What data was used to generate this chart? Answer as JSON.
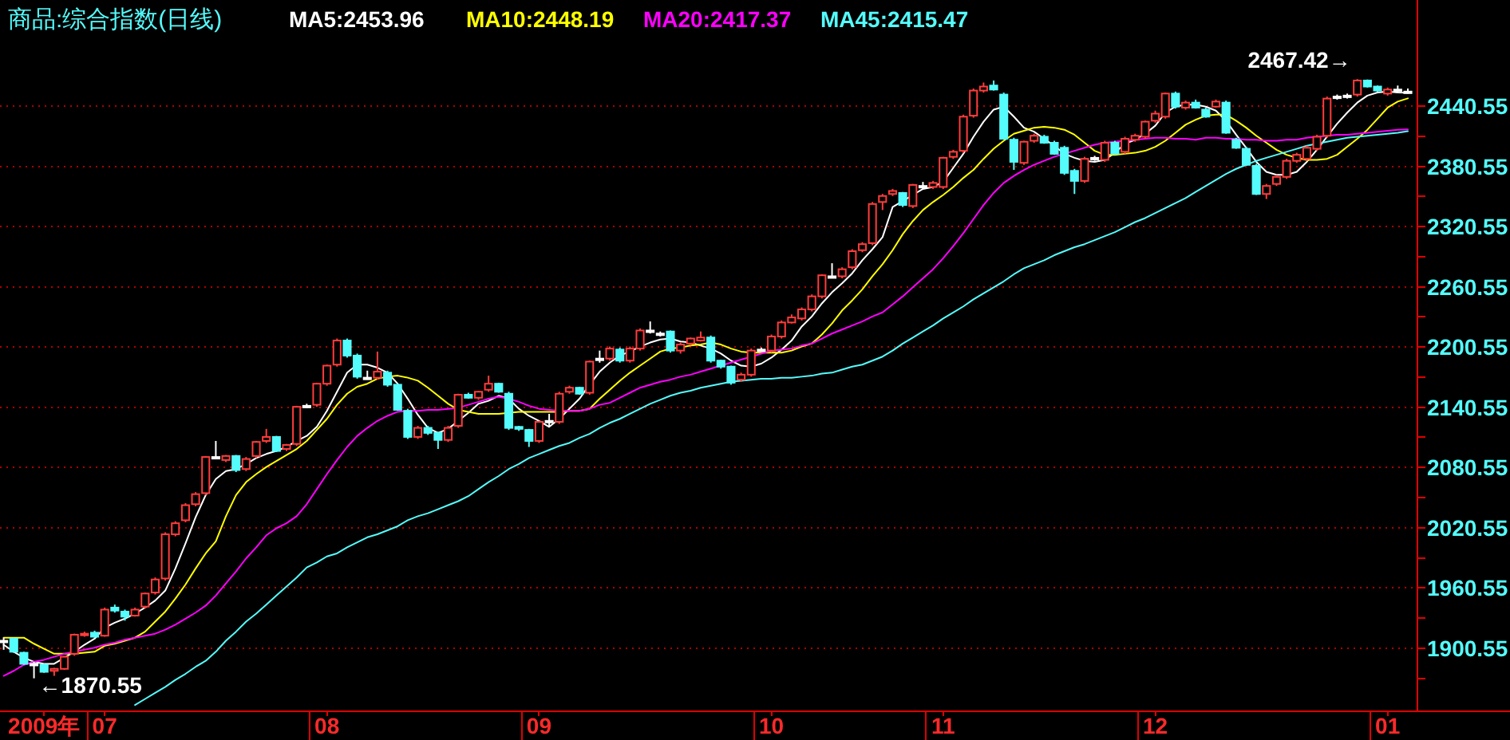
{
  "chart_data": {
    "type": "candlestick",
    "title": "商品:综合指数(日线)",
    "categories": [
      null,
      null,
      null,
      null,
      "2009年",
      null,
      null,
      null,
      null,
      null,
      "07",
      null,
      null,
      null,
      null,
      null,
      null,
      null,
      null,
      null,
      null,
      null,
      null,
      null,
      null,
      null,
      null,
      null,
      null,
      null,
      null,
      null,
      "08",
      null,
      null,
      null,
      null,
      null,
      null,
      null,
      null,
      null,
      null,
      null,
      null,
      null,
      null,
      null,
      null,
      null,
      null,
      null,
      null,
      "09",
      null,
      null,
      null,
      null,
      null,
      null,
      null,
      null,
      null,
      null,
      null,
      null,
      null,
      null,
      null,
      null,
      null,
      null,
      null,
      null,
      null,
      null,
      "10",
      null,
      null,
      null,
      null,
      null,
      null,
      null,
      null,
      null,
      null,
      null,
      null,
      null,
      null,
      null,
      null,
      "11",
      null,
      null,
      null,
      null,
      null,
      null,
      null,
      null,
      null,
      null,
      null,
      null,
      null,
      null,
      null,
      null,
      null,
      null,
      null,
      null,
      "12",
      null,
      null,
      null,
      null,
      null,
      null,
      null,
      null,
      null,
      null,
      null,
      null,
      null,
      null,
      null,
      null,
      null,
      null,
      null,
      null,
      null,
      null,
      "01",
      null,
      null
    ],
    "ohlc": [
      [
        1908,
        1911,
        1899,
        1908
      ],
      [
        1910,
        1911,
        1896,
        1897
      ],
      [
        1896,
        1897,
        1884,
        1885
      ],
      [
        1885,
        1887,
        1870.55,
        1885
      ],
      [
        1884,
        1885,
        1876,
        1877
      ],
      [
        1878,
        1881,
        1873,
        1880
      ],
      [
        1880,
        1893,
        1879,
        1892
      ],
      [
        1895,
        1915,
        1893,
        1914
      ],
      [
        1914,
        1917,
        1912,
        1915
      ],
      [
        1916,
        1918,
        1911,
        1912
      ],
      [
        1913,
        1941,
        1912,
        1939
      ],
      [
        1941,
        1944,
        1936,
        1938
      ],
      [
        1937,
        1939,
        1928,
        1932
      ],
      [
        1933,
        1941,
        1932,
        1939
      ],
      [
        1942,
        1956,
        1940,
        1955
      ],
      [
        1956,
        1971,
        1954,
        1969
      ],
      [
        1970,
        2016,
        1968,
        2014
      ],
      [
        2014,
        2027,
        2012,
        2025
      ],
      [
        2028,
        2045,
        2026,
        2043
      ],
      [
        2044,
        2056,
        2042,
        2054
      ],
      [
        2055,
        2092,
        2053,
        2091
      ],
      [
        2091,
        2107,
        2089,
        2091
      ],
      [
        2088,
        2093,
        2086,
        2092
      ],
      [
        2092,
        2093,
        2076,
        2078
      ],
      [
        2079,
        2091,
        2077,
        2089
      ],
      [
        2092,
        2107,
        2090,
        2106
      ],
      [
        2107,
        2119,
        2105,
        2111
      ],
      [
        2111,
        2112,
        2096,
        2097
      ],
      [
        2099,
        2104,
        2097,
        2103
      ],
      [
        2104,
        2142,
        2102,
        2141
      ],
      [
        2142,
        2144,
        2140,
        2142
      ],
      [
        2143,
        2165,
        2141,
        2164
      ],
      [
        2164,
        2183,
        2162,
        2182
      ],
      [
        2183,
        2209,
        2181,
        2207
      ],
      [
        2207,
        2209,
        2190,
        2192
      ],
      [
        2192,
        2194,
        2169,
        2171
      ],
      [
        2170,
        2177,
        2168,
        2170
      ],
      [
        2170,
        2196,
        2168,
        2176
      ],
      [
        2175,
        2177,
        2161,
        2163
      ],
      [
        2163,
        2164,
        2137,
        2138
      ],
      [
        2137,
        2139,
        2109,
        2111
      ],
      [
        2111,
        2122,
        2109,
        2120
      ],
      [
        2120,
        2122,
        2113,
        2115
      ],
      [
        2115,
        2116,
        2099,
        2108
      ],
      [
        2108,
        2122,
        2106,
        2120
      ],
      [
        2122,
        2154,
        2120,
        2153
      ],
      [
        2153,
        2155,
        2149,
        2150
      ],
      [
        2150,
        2157,
        2148,
        2156
      ],
      [
        2158,
        2172,
        2156,
        2164
      ],
      [
        2164,
        2165,
        2155,
        2156
      ],
      [
        2154,
        2156,
        2118,
        2120
      ],
      [
        2121,
        2122,
        2117,
        2119
      ],
      [
        2118,
        2119,
        2101,
        2107
      ],
      [
        2107,
        2127,
        2105,
        2126
      ],
      [
        2127,
        2134,
        2122,
        2127
      ],
      [
        2126,
        2156,
        2124,
        2154
      ],
      [
        2156,
        2162,
        2154,
        2160
      ],
      [
        2160,
        2161,
        2153,
        2154
      ],
      [
        2155,
        2187,
        2153,
        2186
      ],
      [
        2189,
        2197,
        2185,
        2189
      ],
      [
        2189,
        2201,
        2187,
        2199
      ],
      [
        2198,
        2200,
        2185,
        2187
      ],
      [
        2187,
        2201,
        2185,
        2199
      ],
      [
        2199,
        2219,
        2197,
        2217
      ],
      [
        2217,
        2226,
        2214,
        2217
      ],
      [
        2214,
        2216,
        2211,
        2214
      ],
      [
        2216,
        2217,
        2195,
        2197
      ],
      [
        2197,
        2205,
        2194,
        2203
      ],
      [
        2204,
        2210,
        2202,
        2209
      ],
      [
        2207,
        2216,
        2206,
        2210
      ],
      [
        2210,
        2212,
        2185,
        2187
      ],
      [
        2187,
        2188,
        2179,
        2181
      ],
      [
        2181,
        2182,
        2163,
        2165
      ],
      [
        2168,
        2175,
        2166,
        2173
      ],
      [
        2173,
        2199,
        2171,
        2197
      ],
      [
        2198,
        2200,
        2196,
        2198
      ],
      [
        2197,
        2213,
        2195,
        2211
      ],
      [
        2211,
        2227,
        2209,
        2225
      ],
      [
        2225,
        2233,
        2224,
        2230
      ],
      [
        2229,
        2240,
        2227,
        2238
      ],
      [
        2238,
        2253,
        2236,
        2251
      ],
      [
        2251,
        2273,
        2249,
        2272
      ],
      [
        2271,
        2284,
        2269,
        2271
      ],
      [
        2271,
        2280,
        2269,
        2278
      ],
      [
        2280,
        2298,
        2278,
        2296
      ],
      [
        2297,
        2305,
        2295,
        2303
      ],
      [
        2304,
        2345,
        2302,
        2343
      ],
      [
        2345,
        2353,
        2337,
        2351
      ],
      [
        2353,
        2358,
        2351,
        2356
      ],
      [
        2354,
        2355,
        2340,
        2342
      ],
      [
        2341,
        2363,
        2339,
        2362
      ],
      [
        2361,
        2365,
        2358,
        2361
      ],
      [
        2360,
        2366,
        2358,
        2364
      ],
      [
        2360,
        2390,
        2358,
        2389
      ],
      [
        2390,
        2397,
        2388,
        2395
      ],
      [
        2396,
        2432,
        2394,
        2430
      ],
      [
        2431,
        2458,
        2429,
        2456
      ],
      [
        2456,
        2464,
        2454,
        2460
      ],
      [
        2461,
        2466,
        2456,
        2457
      ],
      [
        2452,
        2454,
        2407,
        2408
      ],
      [
        2407,
        2409,
        2377,
        2385
      ],
      [
        2384,
        2406,
        2382,
        2405
      ],
      [
        2406,
        2413,
        2404,
        2411
      ],
      [
        2410,
        2412,
        2403,
        2404
      ],
      [
        2404,
        2406,
        2392,
        2393
      ],
      [
        2399,
        2401,
        2372,
        2374
      ],
      [
        2376,
        2378,
        2353,
        2366
      ],
      [
        2366,
        2390,
        2364,
        2388
      ],
      [
        2389,
        2391,
        2386,
        2389
      ],
      [
        2387,
        2406,
        2385,
        2404
      ],
      [
        2404,
        2406,
        2392,
        2393
      ],
      [
        2395,
        2410,
        2393,
        2408
      ],
      [
        2407,
        2413,
        2405,
        2411
      ],
      [
        2410,
        2426,
        2408,
        2425
      ],
      [
        2426,
        2436,
        2424,
        2433
      ],
      [
        2430,
        2454,
        2428,
        2453
      ],
      [
        2453,
        2455,
        2438,
        2440
      ],
      [
        2439,
        2446,
        2437,
        2444
      ],
      [
        2444,
        2447,
        2438,
        2439
      ],
      [
        2437,
        2439,
        2429,
        2430
      ],
      [
        2440,
        2447,
        2439,
        2445
      ],
      [
        2444,
        2446,
        2413,
        2414
      ],
      [
        2407,
        2409,
        2398,
        2399
      ],
      [
        2398,
        2400,
        2381,
        2382
      ],
      [
        2381,
        2383,
        2352,
        2353
      ],
      [
        2353,
        2363,
        2348,
        2361
      ],
      [
        2363,
        2372,
        2361,
        2370
      ],
      [
        2370,
        2388,
        2368,
        2386
      ],
      [
        2386,
        2394,
        2384,
        2392
      ],
      [
        2388,
        2401,
        2386,
        2399
      ],
      [
        2398,
        2412,
        2396,
        2410
      ],
      [
        2411,
        2450,
        2409,
        2448
      ],
      [
        2450,
        2452,
        2447,
        2450
      ],
      [
        2451,
        2453,
        2448,
        2451
      ],
      [
        2452,
        2467.42,
        2450,
        2466
      ],
      [
        2466,
        2467,
        2459,
        2460
      ],
      [
        2460,
        2461,
        2455,
        2456
      ],
      [
        2453,
        2459,
        2451,
        2457
      ],
      [
        2457,
        2461,
        2454,
        2457
      ],
      [
        2455,
        2458,
        2453,
        2455
      ]
    ],
    "colors": [
      "#ffffff",
      "#54fcfc",
      "#54fcfc",
      "#ffffff",
      "#54fcfc",
      "#ff3c3c",
      "#ff3c3c",
      "#ff3c3c",
      "#ff3c3c",
      "#54fcfc",
      "#ff3c3c",
      "#54fcfc",
      "#54fcfc",
      "#ff3c3c",
      "#ff3c3c",
      "#ff3c3c",
      "#ff3c3c",
      "#ff3c3c",
      "#ff3c3c",
      "#ff3c3c",
      "#ff3c3c",
      "#ffffff",
      "#ff3c3c",
      "#54fcfc",
      "#ff3c3c",
      "#ff3c3c",
      "#ff3c3c",
      "#54fcfc",
      "#ff3c3c",
      "#ff3c3c",
      "#ffffff",
      "#ff3c3c",
      "#ff3c3c",
      "#ff3c3c",
      "#54fcfc",
      "#54fcfc",
      "#ffffff",
      "#ff3c3c",
      "#54fcfc",
      "#54fcfc",
      "#54fcfc",
      "#ff3c3c",
      "#54fcfc",
      "#54fcfc",
      "#ff3c3c",
      "#ff3c3c",
      "#54fcfc",
      "#ff3c3c",
      "#ff3c3c",
      "#54fcfc",
      "#54fcfc",
      "#54fcfc",
      "#54fcfc",
      "#ff3c3c",
      "#ffffff",
      "#ff3c3c",
      "#ff3c3c",
      "#54fcfc",
      "#ff3c3c",
      "#ffffff",
      "#ff3c3c",
      "#54fcfc",
      "#ff3c3c",
      "#ff3c3c",
      "#ffffff",
      "#ffffff",
      "#54fcfc",
      "#ff3c3c",
      "#ff3c3c",
      "#ff3c3c",
      "#54fcfc",
      "#54fcfc",
      "#54fcfc",
      "#ff3c3c",
      "#ff3c3c",
      "#ffffff",
      "#ff3c3c",
      "#ff3c3c",
      "#ff3c3c",
      "#ff3c3c",
      "#ff3c3c",
      "#ff3c3c",
      "#ffffff",
      "#ff3c3c",
      "#ff3c3c",
      "#ff3c3c",
      "#ff3c3c",
      "#ff3c3c",
      "#ff3c3c",
      "#54fcfc",
      "#ff3c3c",
      "#ffffff",
      "#ff3c3c",
      "#ff3c3c",
      "#ff3c3c",
      "#ff3c3c",
      "#ff3c3c",
      "#ff3c3c",
      "#54fcfc",
      "#54fcfc",
      "#54fcfc",
      "#ff3c3c",
      "#ff3c3c",
      "#54fcfc",
      "#54fcfc",
      "#54fcfc",
      "#54fcfc",
      "#ff3c3c",
      "#ffffff",
      "#ff3c3c",
      "#54fcfc",
      "#ff3c3c",
      "#ff3c3c",
      "#ff3c3c",
      "#ff3c3c",
      "#ff3c3c",
      "#54fcfc",
      "#ff3c3c",
      "#54fcfc",
      "#54fcfc",
      "#ff3c3c",
      "#54fcfc",
      "#54fcfc",
      "#54fcfc",
      "#54fcfc",
      "#ff3c3c",
      "#ff3c3c",
      "#ff3c3c",
      "#ff3c3c",
      "#ff3c3c",
      "#ff3c3c",
      "#ff3c3c",
      "#ffffff",
      "#ffffff",
      "#ff3c3c",
      "#54fcfc",
      "#54fcfc",
      "#ff3c3c",
      "#ffffff",
      "#ffffff"
    ],
    "series": [
      {
        "type": "line",
        "name": "MA5:2453.96",
        "color": "#ffffff",
        "values": [
          1904,
          1897,
          1891,
          1887,
          1885,
          1885,
          1891,
          1897,
          1904,
          1910,
          1921,
          1926,
          1930,
          1935,
          1941,
          1948,
          1958,
          1980,
          2005,
          2031,
          2053,
          2069,
          2077,
          2079,
          2084,
          2090,
          2094,
          2097,
          2101,
          2107,
          2112,
          2121,
          2137,
          2156,
          2175,
          2183,
          2183,
          2180,
          2175,
          2164,
          2149,
          2133,
          2120,
          2115,
          2119,
          2127,
          2135,
          2144,
          2147,
          2152,
          2149,
          2139,
          2132,
          2127,
          2121,
          2129,
          2139,
          2149,
          2163,
          2176,
          2185,
          2192,
          2196,
          2201,
          2205,
          2208,
          2209,
          2206,
          2205,
          2202,
          2199,
          2194,
          2187,
          2182,
          2181,
          2184,
          2190,
          2198,
          2207,
          2221,
          2231,
          2244,
          2255,
          2264,
          2274,
          2287,
          2298,
          2310,
          2340,
          2346,
          2352,
          2358,
          2360,
          2365,
          2379,
          2393,
          2410,
          2425,
          2437,
          2440,
          2430,
          2419,
          2415,
          2408,
          2401,
          2393,
          2389,
          2386,
          2385,
          2387,
          2394,
          2403,
          2407,
          2413,
          2421,
          2434,
          2440,
          2442,
          2442,
          2440,
          2436,
          2426,
          2412,
          2399,
          2385,
          2375,
          2372,
          2372,
          2375,
          2385,
          2397,
          2410,
          2423,
          2434,
          2444,
          2451,
          2454,
          2455,
          2454,
          2453.96
        ]
      },
      {
        "type": "line",
        "name": "MA10:2448.19",
        "color": "#ffff00",
        "values": [
          1911,
          1911,
          1911,
          1905,
          1900,
          1895,
          1895,
          1895,
          1896,
          1897,
          1903,
          1905,
          1908,
          1911,
          1917,
          1927,
          1937,
          1950,
          1964,
          1980,
          1995,
          2007,
          2032,
          2053,
          2066,
          2074,
          2081,
          2087,
          2093,
          2099,
          2107,
          2118,
          2129,
          2143,
          2154,
          2161,
          2164,
          2169,
          2171,
          2172,
          2170,
          2167,
          2160,
          2152,
          2144,
          2138,
          2136,
          2134,
          2134,
          2134,
          2135,
          2136,
          2136,
          2136,
          2136,
          2136,
          2137,
          2137,
          2139,
          2149,
          2158,
          2167,
          2175,
          2182,
          2189,
          2196,
          2199,
          2200,
          2202,
          2203,
          2205,
          2203,
          2199,
          2196,
          2195,
          2195,
          2195,
          2195,
          2197,
          2201,
          2204,
          2213,
          2224,
          2237,
          2247,
          2258,
          2271,
          2283,
          2297,
          2313,
          2326,
          2337,
          2345,
          2352,
          2360,
          2369,
          2377,
          2388,
          2398,
          2406,
          2413,
          2416,
          2419,
          2420,
          2419,
          2417,
          2412,
          2404,
          2396,
          2392,
          2392,
          2393,
          2394,
          2396,
          2400,
          2406,
          2414,
          2422,
          2427,
          2431,
          2432,
          2432,
          2426,
          2419,
          2411,
          2404,
          2397,
          2392,
          2389,
          2387,
          2387,
          2388,
          2392,
          2400,
          2408,
          2417,
          2428,
          2439,
          2445,
          2448.19
        ]
      },
      {
        "type": "line",
        "name": "MA20:2417.37",
        "color": "#ff00ff",
        "values": [
          1873,
          1878,
          1884,
          1887,
          1889,
          1892,
          1895,
          1897,
          1899,
          1901,
          1904,
          1906,
          1909,
          1911,
          1913,
          1915,
          1919,
          1924,
          1930,
          1936,
          1943,
          1953,
          1965,
          1977,
          1990,
          2001,
          2013,
          2020,
          2025,
          2032,
          2044,
          2059,
          2074,
          2088,
          2101,
          2112,
          2120,
          2127,
          2132,
          2136,
          2137,
          2137,
          2138,
          2138,
          2139,
          2140,
          2143,
          2146,
          2149,
          2151,
          2149,
          2146,
          2142,
          2139,
          2138,
          2137,
          2137,
          2137,
          2139,
          2143,
          2145,
          2150,
          2155,
          2160,
          2163,
          2166,
          2168,
          2171,
          2173,
          2176,
          2179,
          2182,
          2185,
          2188,
          2191,
          2194,
          2197,
          2198,
          2199,
          2202,
          2204,
          2209,
          2214,
          2218,
          2222,
          2226,
          2231,
          2235,
          2243,
          2251,
          2260,
          2269,
          2278,
          2289,
          2301,
          2314,
          2328,
          2342,
          2354,
          2364,
          2371,
          2377,
          2382,
          2386,
          2390,
          2393,
          2396,
          2399,
          2402,
          2404,
          2405,
          2406,
          2407,
          2408,
          2409,
          2409,
          2408,
          2408,
          2407,
          2409,
          2409,
          2408,
          2408,
          2407,
          2407,
          2406,
          2406,
          2407,
          2407,
          2409,
          2410,
          2411,
          2412,
          2412,
          2413,
          2414,
          2415,
          2416,
          2417,
          2417.37
        ]
      },
      {
        "type": "line",
        "name": "MA45:2415.47",
        "color": "#54fcfc",
        "values": [
          null,
          null,
          null,
          null,
          null,
          null,
          null,
          null,
          null,
          null,
          null,
          null,
          null,
          1844,
          1850,
          1856,
          1862,
          1869,
          1875,
          1882,
          1888,
          1897,
          1908,
          1917,
          1927,
          1935,
          1944,
          1953,
          1962,
          1971,
          1981,
          1986,
          1992,
          1995,
          2001,
          2006,
          2011,
          2014,
          2018,
          2022,
          2028,
          2032,
          2035,
          2039,
          2043,
          2047,
          2052,
          2059,
          2066,
          2072,
          2079,
          2084,
          2090,
          2094,
          2098,
          2102,
          2105,
          2110,
          2114,
          2120,
          2125,
          2129,
          2134,
          2139,
          2144,
          2148,
          2152,
          2155,
          2157,
          2160,
          2162,
          2164,
          2166,
          2167,
          2168,
          2169,
          2169,
          2170,
          2170,
          2171,
          2172,
          2174,
          2175,
          2178,
          2181,
          2183,
          2187,
          2191,
          2197,
          2204,
          2210,
          2216,
          2222,
          2229,
          2235,
          2241,
          2248,
          2254,
          2260,
          2266,
          2273,
          2279,
          2283,
          2287,
          2292,
          2296,
          2300,
          2303,
          2307,
          2311,
          2315,
          2320,
          2325,
          2329,
          2334,
          2339,
          2344,
          2349,
          2355,
          2361,
          2367,
          2373,
          2378,
          2382,
          2386,
          2389,
          2392,
          2395,
          2398,
          2401,
          2403,
          2405,
          2407,
          2409,
          2410,
          2411,
          2412,
          2413,
          2414,
          2415.47
        ]
      }
    ],
    "ylim": [
      1837.7,
      2546.2
    ],
    "yticks": [
      {
        "value": 1870.55,
        "label": null
      },
      1900.55,
      {
        "value": 1930.55,
        "label": null
      },
      1960.55,
      {
        "value": 1990.55,
        "label": null
      },
      2020.55,
      {
        "value": 2050.55,
        "label": null
      },
      2080.55,
      {
        "value": 2110.55,
        "label": null
      },
      2140.55,
      {
        "value": 2170.55,
        "label": null
      },
      2200.55,
      {
        "value": 2230.55,
        "label": null
      },
      2260.55,
      {
        "value": 2290.55,
        "label": null
      },
      2320.55,
      {
        "value": 2350.55,
        "label": null
      },
      2380.55,
      {
        "value": 2410.55,
        "label": null
      },
      2440.55
    ],
    "grid": "y",
    "legend": "top left",
    "annotations": [
      "2467.42→",
      "←1870.55"
    ]
  }
}
